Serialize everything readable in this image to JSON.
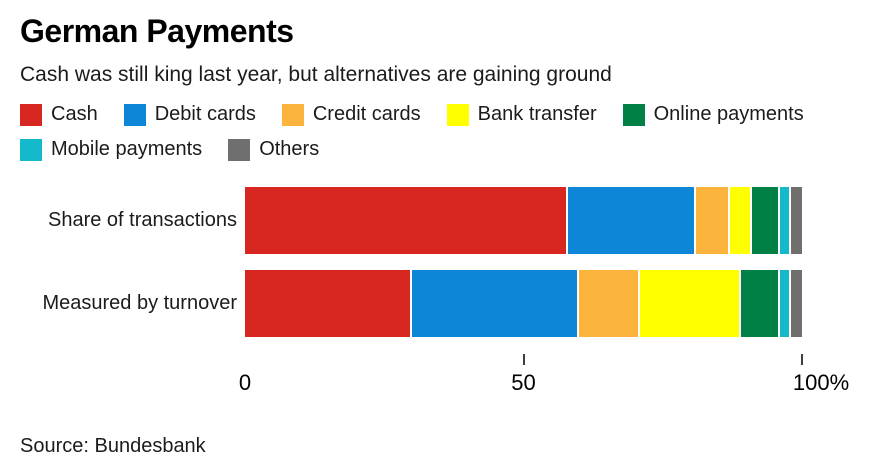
{
  "header": {
    "title": "German Payments",
    "subtitle": "Cash was still king last year, but alternatives are gaining ground"
  },
  "chart_data": {
    "type": "bar",
    "orientation": "horizontal",
    "stacked": true,
    "unit": "%",
    "categories": [
      "Share of transactions",
      "Measured by turnover"
    ],
    "series": [
      {
        "name": "Cash",
        "color": "#d82620",
        "values": [
          58,
          30
        ]
      },
      {
        "name": "Debit cards",
        "color": "#0d86d8",
        "values": [
          23,
          30
        ]
      },
      {
        "name": "Credit cards",
        "color": "#fcb43d",
        "values": [
          6,
          11
        ]
      },
      {
        "name": "Bank transfer",
        "color": "#ffff00",
        "values": [
          4,
          18
        ]
      },
      {
        "name": "Online payments",
        "color": "#008044",
        "values": [
          5,
          7
        ]
      },
      {
        "name": "Mobile payments",
        "color": "#14b9cc",
        "values": [
          2,
          2
        ]
      },
      {
        "name": "Others",
        "color": "#6f6f6f",
        "values": [
          2,
          2
        ]
      }
    ],
    "xlim": [
      0,
      100
    ],
    "x_ticks": [
      {
        "value": 0,
        "label": "0",
        "tick": false
      },
      {
        "value": 50,
        "label": "50",
        "tick": true
      },
      {
        "value": 100,
        "label": "100%",
        "tick": true
      }
    ],
    "legend_position": "top",
    "grid": false
  },
  "source": "Source: Bundesbank"
}
